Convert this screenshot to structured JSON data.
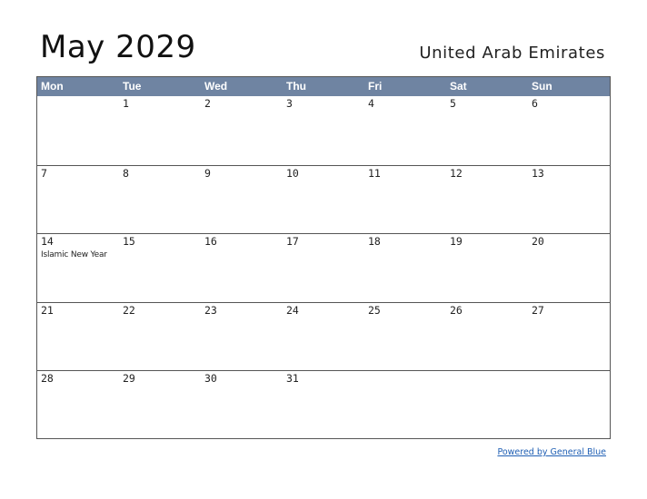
{
  "title": "May 2029",
  "country": "United Arab Emirates",
  "weekdays": [
    "Mon",
    "Tue",
    "Wed",
    "Thu",
    "Fri",
    "Sat",
    "Sun"
  ],
  "weeks": [
    [
      {
        "day": ""
      },
      {
        "day": "1"
      },
      {
        "day": "2"
      },
      {
        "day": "3"
      },
      {
        "day": "4"
      },
      {
        "day": "5"
      },
      {
        "day": "6"
      }
    ],
    [
      {
        "day": "7"
      },
      {
        "day": "8"
      },
      {
        "day": "9"
      },
      {
        "day": "10"
      },
      {
        "day": "11"
      },
      {
        "day": "12"
      },
      {
        "day": "13"
      }
    ],
    [
      {
        "day": "14",
        "holiday": "Islamic New Year"
      },
      {
        "day": "15"
      },
      {
        "day": "16"
      },
      {
        "day": "17"
      },
      {
        "day": "18"
      },
      {
        "day": "19"
      },
      {
        "day": "20"
      }
    ],
    [
      {
        "day": "21"
      },
      {
        "day": "22"
      },
      {
        "day": "23"
      },
      {
        "day": "24"
      },
      {
        "day": "25"
      },
      {
        "day": "26"
      },
      {
        "day": "27"
      }
    ],
    [
      {
        "day": "28"
      },
      {
        "day": "29"
      },
      {
        "day": "30"
      },
      {
        "day": "31"
      },
      {
        "day": ""
      },
      {
        "day": ""
      },
      {
        "day": ""
      }
    ]
  ],
  "footer": {
    "powered_by": "Powered by General Blue"
  },
  "colors": {
    "header_bg": "#6f84a2",
    "link": "#1f5fb4"
  }
}
